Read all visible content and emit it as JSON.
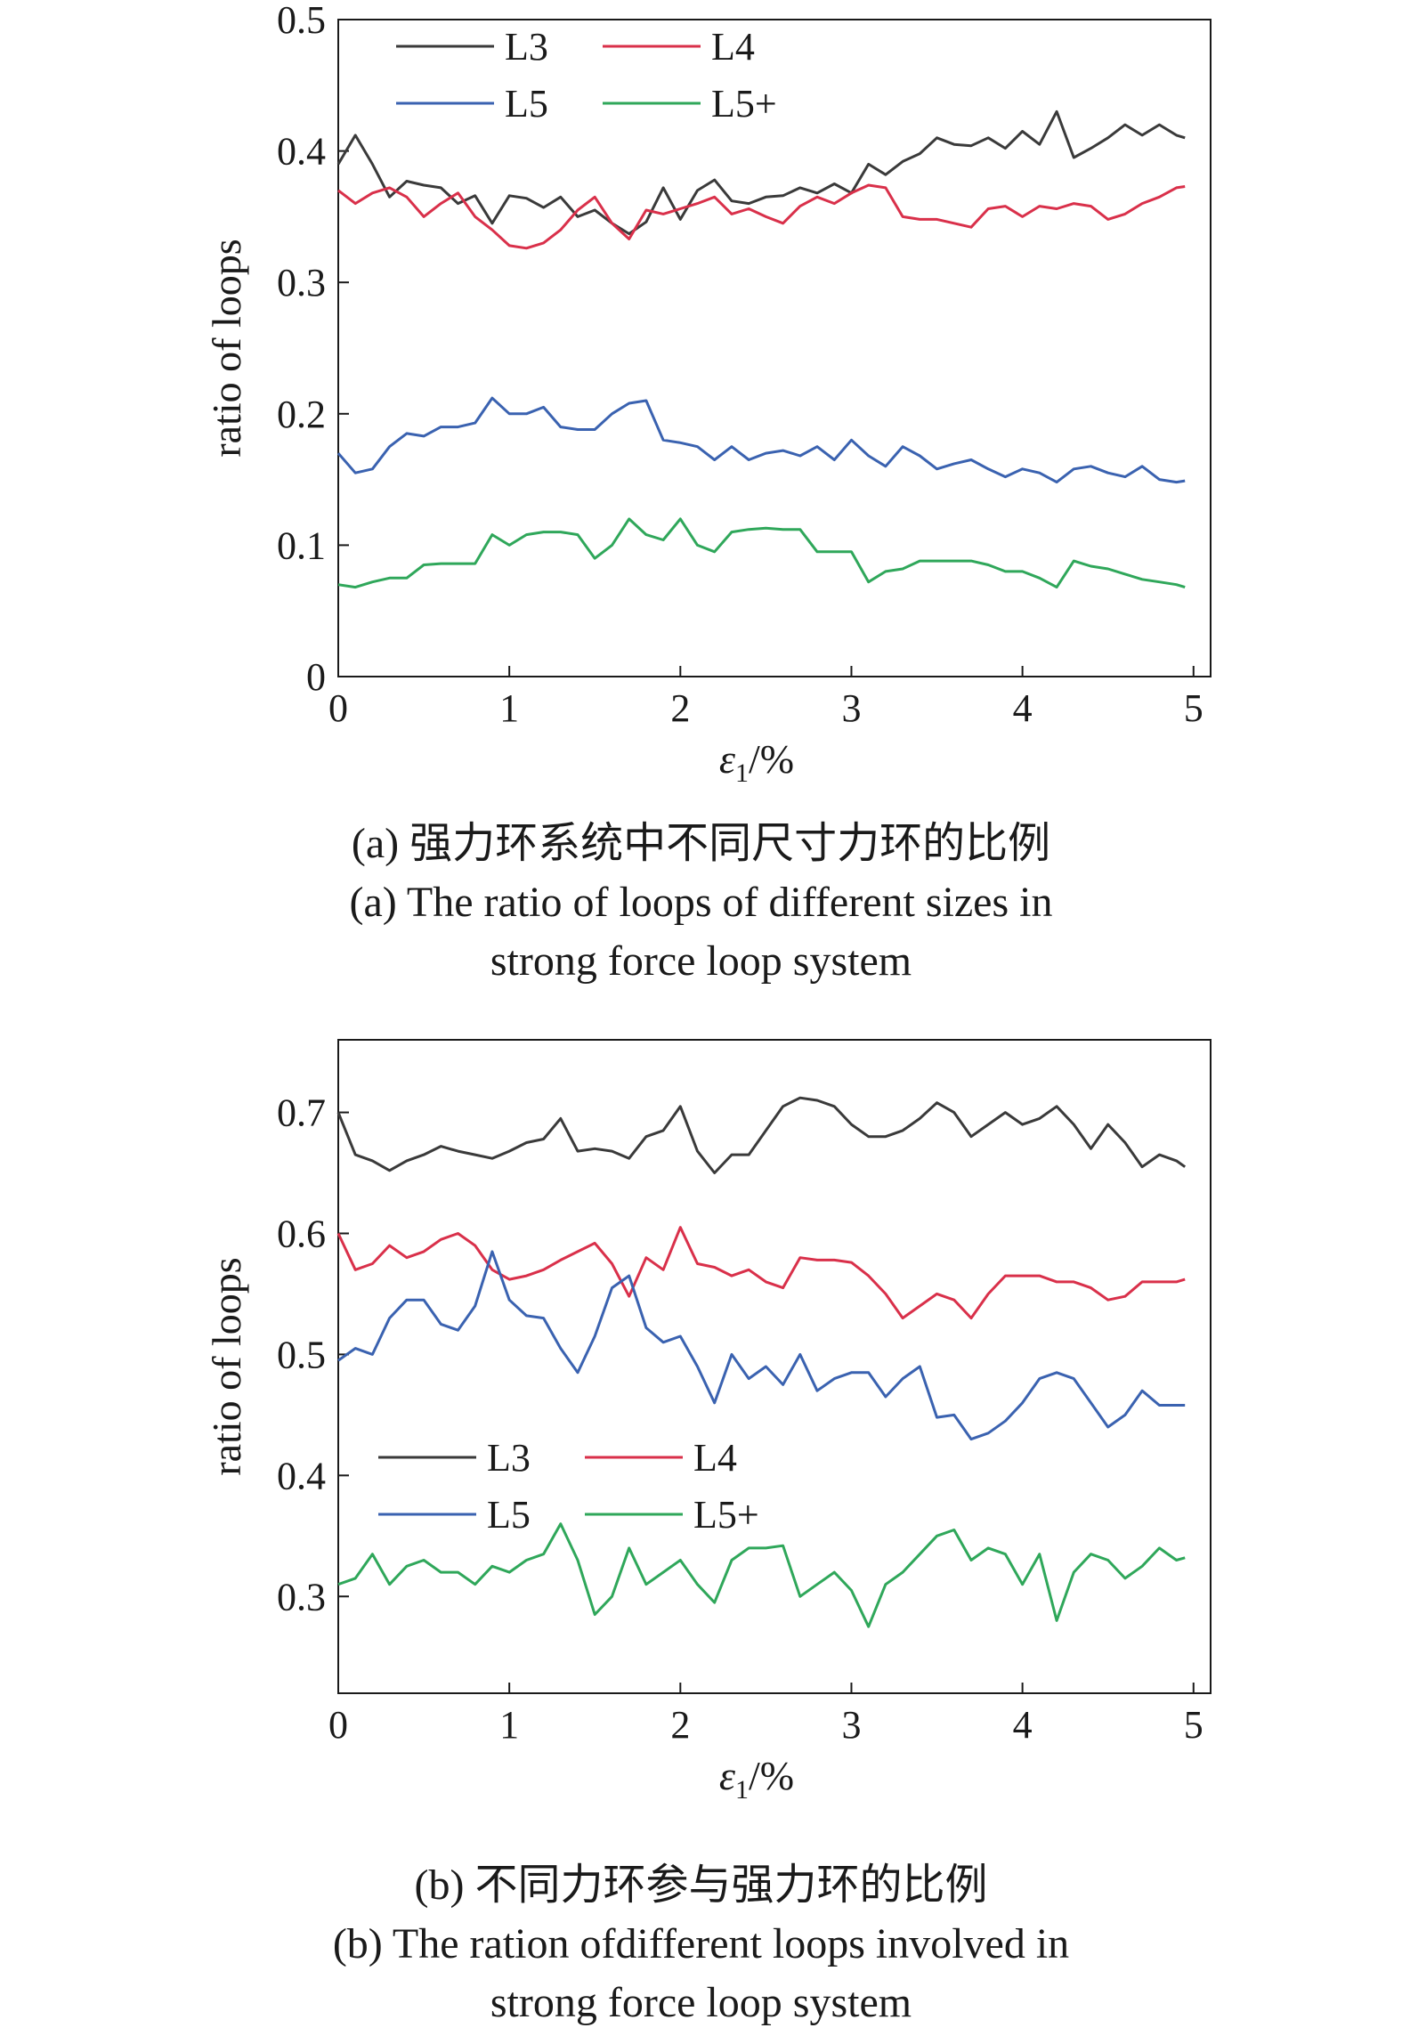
{
  "colors": {
    "L3": "#3a3a3a",
    "L4": "#d9304a",
    "L5": "#3a62b0",
    "L5+": "#2fa75a"
  },
  "chart_data": [
    {
      "type": "line",
      "id": "a",
      "xlabel_symbol": "ε",
      "xlabel_sub": "1",
      "xlabel_unit": "/%",
      "ylabel": "ratio of loops",
      "xlim": [
        0,
        5.1
      ],
      "ylim": [
        0,
        0.5
      ],
      "xticks": [
        0,
        1,
        2,
        3,
        4,
        5
      ],
      "yticks": [
        0,
        0.1,
        0.2,
        0.3,
        0.4,
        0.5
      ],
      "ytick_labels": [
        "0",
        "0.1",
        "0.2",
        "0.3",
        "0.4",
        "0.5"
      ],
      "legend": "top-left",
      "caption_zh": "(a) 强力环系统中不同尺寸力环的比例",
      "caption_en_1": "(a) The ratio of loops of different sizes in",
      "caption_en_2": "strong force loop system",
      "x": [
        0,
        0.1,
        0.2,
        0.3,
        0.4,
        0.5,
        0.6,
        0.7,
        0.8,
        0.9,
        1.0,
        1.1,
        1.2,
        1.3,
        1.4,
        1.5,
        1.6,
        1.7,
        1.8,
        1.9,
        2.0,
        2.1,
        2.2,
        2.3,
        2.4,
        2.5,
        2.6,
        2.7,
        2.8,
        2.9,
        3.0,
        3.1,
        3.2,
        3.3,
        3.4,
        3.5,
        3.6,
        3.7,
        3.8,
        3.9,
        4.0,
        4.1,
        4.2,
        4.3,
        4.4,
        4.5,
        4.6,
        4.7,
        4.8,
        4.9,
        4.95
      ],
      "series": [
        {
          "name": "L3",
          "values": [
            0.39,
            0.412,
            0.39,
            0.365,
            0.377,
            0.374,
            0.372,
            0.36,
            0.366,
            0.345,
            0.366,
            0.364,
            0.357,
            0.365,
            0.35,
            0.355,
            0.345,
            0.337,
            0.346,
            0.372,
            0.348,
            0.37,
            0.378,
            0.362,
            0.36,
            0.365,
            0.366,
            0.372,
            0.368,
            0.375,
            0.368,
            0.39,
            0.382,
            0.392,
            0.398,
            0.41,
            0.405,
            0.404,
            0.41,
            0.402,
            0.415,
            0.405,
            0.43,
            0.395,
            0.402,
            0.41,
            0.42,
            0.412,
            0.42,
            0.412,
            0.41
          ]
        },
        {
          "name": "L4",
          "values": [
            0.37,
            0.36,
            0.368,
            0.372,
            0.365,
            0.35,
            0.36,
            0.368,
            0.35,
            0.34,
            0.328,
            0.326,
            0.33,
            0.34,
            0.355,
            0.365,
            0.345,
            0.333,
            0.355,
            0.352,
            0.356,
            0.36,
            0.365,
            0.352,
            0.356,
            0.35,
            0.345,
            0.358,
            0.365,
            0.36,
            0.368,
            0.374,
            0.372,
            0.35,
            0.348,
            0.348,
            0.345,
            0.342,
            0.356,
            0.358,
            0.35,
            0.358,
            0.356,
            0.36,
            0.358,
            0.348,
            0.352,
            0.36,
            0.365,
            0.372,
            0.373
          ]
        },
        {
          "name": "L5",
          "values": [
            0.17,
            0.155,
            0.158,
            0.175,
            0.185,
            0.183,
            0.19,
            0.19,
            0.193,
            0.212,
            0.2,
            0.2,
            0.205,
            0.19,
            0.188,
            0.188,
            0.2,
            0.208,
            0.21,
            0.18,
            0.178,
            0.175,
            0.165,
            0.175,
            0.165,
            0.17,
            0.172,
            0.168,
            0.175,
            0.165,
            0.18,
            0.168,
            0.16,
            0.175,
            0.168,
            0.158,
            0.162,
            0.165,
            0.158,
            0.152,
            0.158,
            0.155,
            0.148,
            0.158,
            0.16,
            0.155,
            0.152,
            0.16,
            0.15,
            0.148,
            0.149
          ]
        },
        {
          "name": "L5+",
          "values": [
            0.07,
            0.068,
            0.072,
            0.075,
            0.075,
            0.085,
            0.086,
            0.086,
            0.086,
            0.108,
            0.1,
            0.108,
            0.11,
            0.11,
            0.108,
            0.09,
            0.1,
            0.12,
            0.108,
            0.104,
            0.12,
            0.1,
            0.095,
            0.11,
            0.112,
            0.113,
            0.112,
            0.112,
            0.095,
            0.095,
            0.095,
            0.072,
            0.08,
            0.082,
            0.088,
            0.088,
            0.088,
            0.088,
            0.085,
            0.08,
            0.08,
            0.075,
            0.068,
            0.088,
            0.084,
            0.082,
            0.078,
            0.074,
            0.072,
            0.07,
            0.068
          ]
        }
      ]
    },
    {
      "type": "line",
      "id": "b",
      "xlabel_symbol": "ε",
      "xlabel_sub": "1",
      "xlabel_unit": "/%",
      "ylabel": "ratio of loops",
      "xlim": [
        0,
        5.1
      ],
      "ylim": [
        0.22,
        0.76
      ],
      "xticks": [
        0,
        1,
        2,
        3,
        4,
        5
      ],
      "yticks": [
        0.3,
        0.4,
        0.5,
        0.6,
        0.7
      ],
      "ytick_labels": [
        "0.3",
        "0.4",
        "0.5",
        "0.6",
        "0.7"
      ],
      "legend": "center-left",
      "caption_zh": "(b) 不同力环参与强力环的比例",
      "caption_en_1": "(b) The ration ofdifferent loops involved in",
      "caption_en_2": "strong force loop system",
      "x": [
        0,
        0.1,
        0.2,
        0.3,
        0.4,
        0.5,
        0.6,
        0.7,
        0.8,
        0.9,
        1.0,
        1.1,
        1.2,
        1.3,
        1.4,
        1.5,
        1.6,
        1.7,
        1.8,
        1.9,
        2.0,
        2.1,
        2.2,
        2.3,
        2.4,
        2.5,
        2.6,
        2.7,
        2.8,
        2.9,
        3.0,
        3.1,
        3.2,
        3.3,
        3.4,
        3.5,
        3.6,
        3.7,
        3.8,
        3.9,
        4.0,
        4.1,
        4.2,
        4.3,
        4.4,
        4.5,
        4.6,
        4.7,
        4.8,
        4.9,
        4.95
      ],
      "series": [
        {
          "name": "L3",
          "values": [
            0.7,
            0.665,
            0.66,
            0.652,
            0.66,
            0.665,
            0.672,
            0.668,
            0.665,
            0.662,
            0.668,
            0.675,
            0.678,
            0.695,
            0.668,
            0.67,
            0.668,
            0.662,
            0.68,
            0.685,
            0.705,
            0.668,
            0.65,
            0.665,
            0.665,
            0.685,
            0.705,
            0.712,
            0.71,
            0.705,
            0.69,
            0.68,
            0.68,
            0.685,
            0.695,
            0.708,
            0.7,
            0.68,
            0.69,
            0.7,
            0.69,
            0.695,
            0.705,
            0.69,
            0.67,
            0.69,
            0.675,
            0.655,
            0.665,
            0.66,
            0.655
          ]
        },
        {
          "name": "L4",
          "values": [
            0.6,
            0.57,
            0.575,
            0.59,
            0.58,
            0.585,
            0.595,
            0.6,
            0.59,
            0.57,
            0.562,
            0.565,
            0.57,
            0.578,
            0.585,
            0.592,
            0.575,
            0.548,
            0.58,
            0.57,
            0.605,
            0.575,
            0.572,
            0.565,
            0.57,
            0.56,
            0.555,
            0.58,
            0.578,
            0.578,
            0.576,
            0.565,
            0.55,
            0.53,
            0.54,
            0.55,
            0.545,
            0.53,
            0.55,
            0.565,
            0.565,
            0.565,
            0.56,
            0.56,
            0.555,
            0.545,
            0.548,
            0.56,
            0.56,
            0.56,
            0.562
          ]
        },
        {
          "name": "L5",
          "values": [
            0.495,
            0.505,
            0.5,
            0.53,
            0.545,
            0.545,
            0.525,
            0.52,
            0.54,
            0.585,
            0.545,
            0.532,
            0.53,
            0.505,
            0.485,
            0.515,
            0.555,
            0.565,
            0.522,
            0.51,
            0.515,
            0.49,
            0.46,
            0.5,
            0.48,
            0.49,
            0.475,
            0.5,
            0.47,
            0.48,
            0.485,
            0.485,
            0.465,
            0.48,
            0.49,
            0.448,
            0.45,
            0.43,
            0.435,
            0.445,
            0.46,
            0.48,
            0.485,
            0.48,
            0.46,
            0.44,
            0.45,
            0.47,
            0.458,
            0.458,
            0.458
          ]
        },
        {
          "name": "L5+",
          "values": [
            0.31,
            0.315,
            0.335,
            0.31,
            0.325,
            0.33,
            0.32,
            0.32,
            0.31,
            0.325,
            0.32,
            0.33,
            0.335,
            0.36,
            0.33,
            0.285,
            0.3,
            0.34,
            0.31,
            0.32,
            0.33,
            0.31,
            0.295,
            0.33,
            0.34,
            0.34,
            0.342,
            0.3,
            0.31,
            0.32,
            0.305,
            0.275,
            0.31,
            0.32,
            0.335,
            0.35,
            0.355,
            0.33,
            0.34,
            0.335,
            0.31,
            0.335,
            0.28,
            0.32,
            0.335,
            0.33,
            0.315,
            0.325,
            0.34,
            0.33,
            0.332
          ]
        }
      ]
    }
  ]
}
